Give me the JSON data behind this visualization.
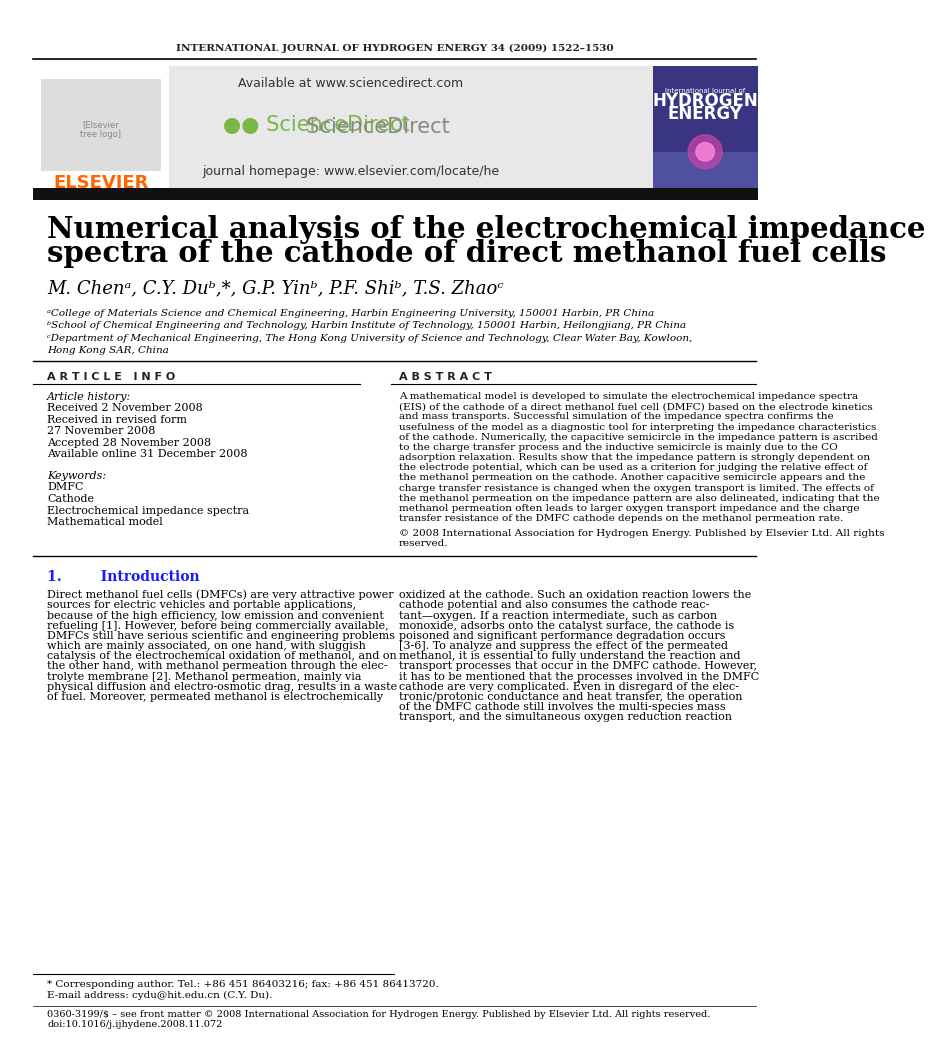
{
  "journal_header": "INTERNATIONAL JOURNAL OF HYDROGEN ENERGY 34 (2009) 1522–1530",
  "available_text": "Available at www.sciencedirect.com",
  "homepage_text": "journal homepage: www.elsevier.com/locate/he",
  "title_line1": "Numerical analysis of the electrochemical impedance",
  "title_line2": "spectra of the cathode of direct methanol fuel cells",
  "authors": "M. Chenᵃ, C.Y. Duᵇ,*, G.P. Yinᵇ, P.F. Shiᵇ, T.S. Zhaoᶜ",
  "affil_a": "ᵃCollege of Materials Science and Chemical Engineering, Harbin Engineering University, 150001 Harbin, PR China",
  "affil_b": "ᵇSchool of Chemical Engineering and Technology, Harbin Institute of Technology, 150001 Harbin, Heilongjiang, PR China",
  "affil_c": "ᶜDepartment of Mechanical Engineering, The Hong Kong University of Science and Technology, Clear Water Bay, Kowloon,",
  "affil_c2": "Hong Kong SAR, China",
  "article_info_label": "A R T I C L E   I N F O",
  "article_history_label": "Article history:",
  "received1": "Received 2 November 2008",
  "received2": "Received in revised form",
  "received2b": "27 November 2008",
  "accepted": "Accepted 28 November 2008",
  "available_online": "Available online 31 December 2008",
  "keywords_label": "Keywords:",
  "kw1": "DMFC",
  "kw2": "Cathode",
  "kw3": "Electrochemical impedance spectra",
  "kw4": "Mathematical model",
  "abstract_label": "A B S T R A C T",
  "copyright_text": "© 2008 International Association for Hydrogen Energy. Published by Elsevier Ltd. All rights",
  "copyright_text2": "reserved.",
  "section1_label": "1.        Introduction",
  "footnote_star": "* Corresponding author. Tel.: +86 451 86403216; fax: +86 451 86413720.",
  "footnote_email": "E-mail address: cydu@hit.edu.cn (C.Y. Du).",
  "footnote_issn": "0360-3199/$ – see front matter © 2008 International Association for Hydrogen Energy. Published by Elsevier Ltd. All rights reserved.",
  "footnote_doi": "doi:10.1016/j.ijhydene.2008.11.072",
  "bg_color": "#ffffff",
  "elsevier_orange": "#FF6600",
  "section_color": "#1a1aff",
  "black_bar_color": "#111111"
}
